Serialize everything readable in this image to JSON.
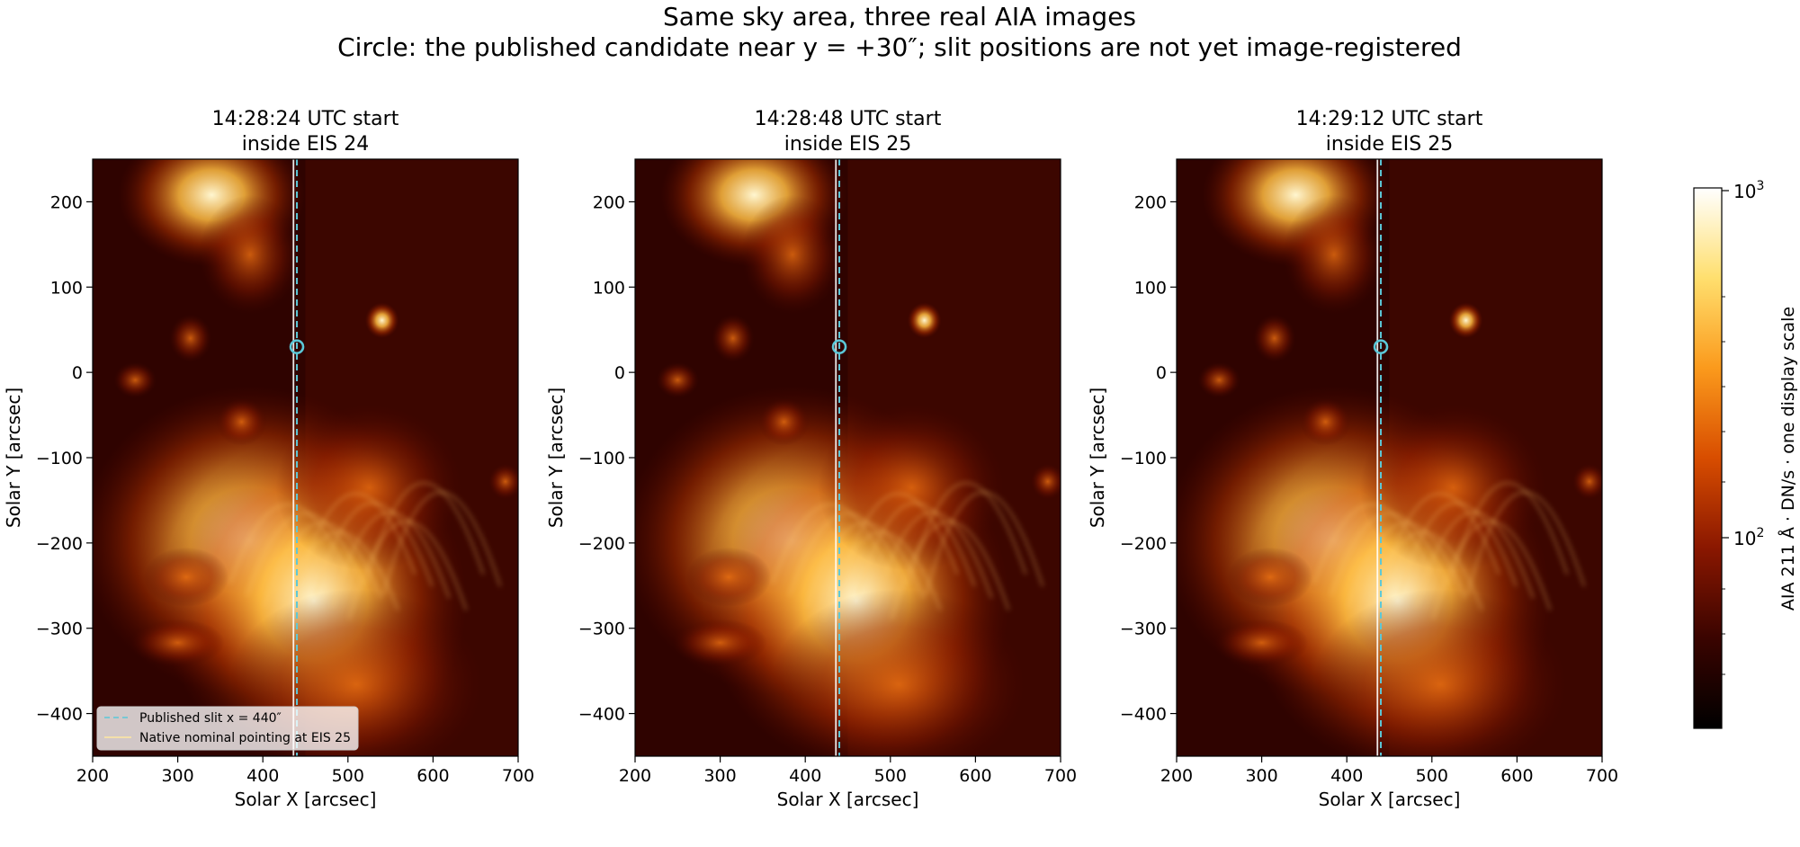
{
  "figure": {
    "suptitle_line1": "Same sky area, three real AIA images",
    "suptitle_line2": "Circle: the published candidate near y = +30″; slit positions are not yet image-registered"
  },
  "colorbar": {
    "label": "AIA 211 Å · DN/s · one display scale",
    "tick_labels": [
      "10",
      "10"
    ],
    "tick_exponents": [
      "3",
      "2"
    ],
    "colormap": "sdoaia211 (black → dark red → orange → yellow → white)",
    "scale": "log",
    "range_approx": [
      30,
      1100
    ],
    "stops": [
      "#000000",
      "#3a0400",
      "#8a1700",
      "#d84d00",
      "#fb9a1c",
      "#ffdf6e",
      "#ffffff"
    ]
  },
  "legend": {
    "entries": [
      {
        "label": "Published slit x = 440″",
        "color": "#5bc8d8",
        "style": "dashed"
      },
      {
        "label": "Native nominal pointing at EIS 25",
        "color": "#ffe9a0",
        "style": "solid"
      }
    ],
    "placement": "lower-left of first panel"
  },
  "chart_data": [
    {
      "type": "heatmap",
      "title_line1": "14:28:24 UTC start",
      "title_line2": "inside EIS 24",
      "xlabel": "Solar X [arcsec]",
      "ylabel": "Solar Y [arcsec]",
      "xlim": [
        200,
        700
      ],
      "ylim": [
        -450,
        250
      ],
      "xticks": [
        200,
        300,
        400,
        500,
        600,
        700
      ],
      "yticks": [
        -400,
        -300,
        -200,
        -100,
        0,
        100,
        200
      ],
      "published_slit_x": 440,
      "native_pointing_x": 436,
      "candidate": {
        "x": 440,
        "y": 30
      }
    },
    {
      "type": "heatmap",
      "title_line1": "14:28:48 UTC start",
      "title_line2": "inside EIS 25",
      "xlabel": "Solar X [arcsec]",
      "ylabel": "Solar Y [arcsec]",
      "xlim": [
        200,
        700
      ],
      "ylim": [
        -450,
        250
      ],
      "xticks": [
        200,
        300,
        400,
        500,
        600,
        700
      ],
      "yticks": [
        -400,
        -300,
        -200,
        -100,
        0,
        100,
        200
      ],
      "published_slit_x": 440,
      "native_pointing_x": 436,
      "candidate": {
        "x": 440,
        "y": 30
      }
    },
    {
      "type": "heatmap",
      "title_line1": "14:29:12 UTC start",
      "title_line2": "inside EIS 25",
      "xlabel": "Solar X [arcsec]",
      "ylabel": "Solar Y [arcsec]",
      "xlim": [
        200,
        700
      ],
      "ylim": [
        -450,
        250
      ],
      "xticks": [
        200,
        300,
        400,
        500,
        600,
        700
      ],
      "yticks": [
        -400,
        -300,
        -200,
        -100,
        0,
        100,
        200
      ],
      "published_slit_x": 440,
      "native_pointing_x": 436,
      "candidate": {
        "x": 440,
        "y": 30
      }
    }
  ]
}
